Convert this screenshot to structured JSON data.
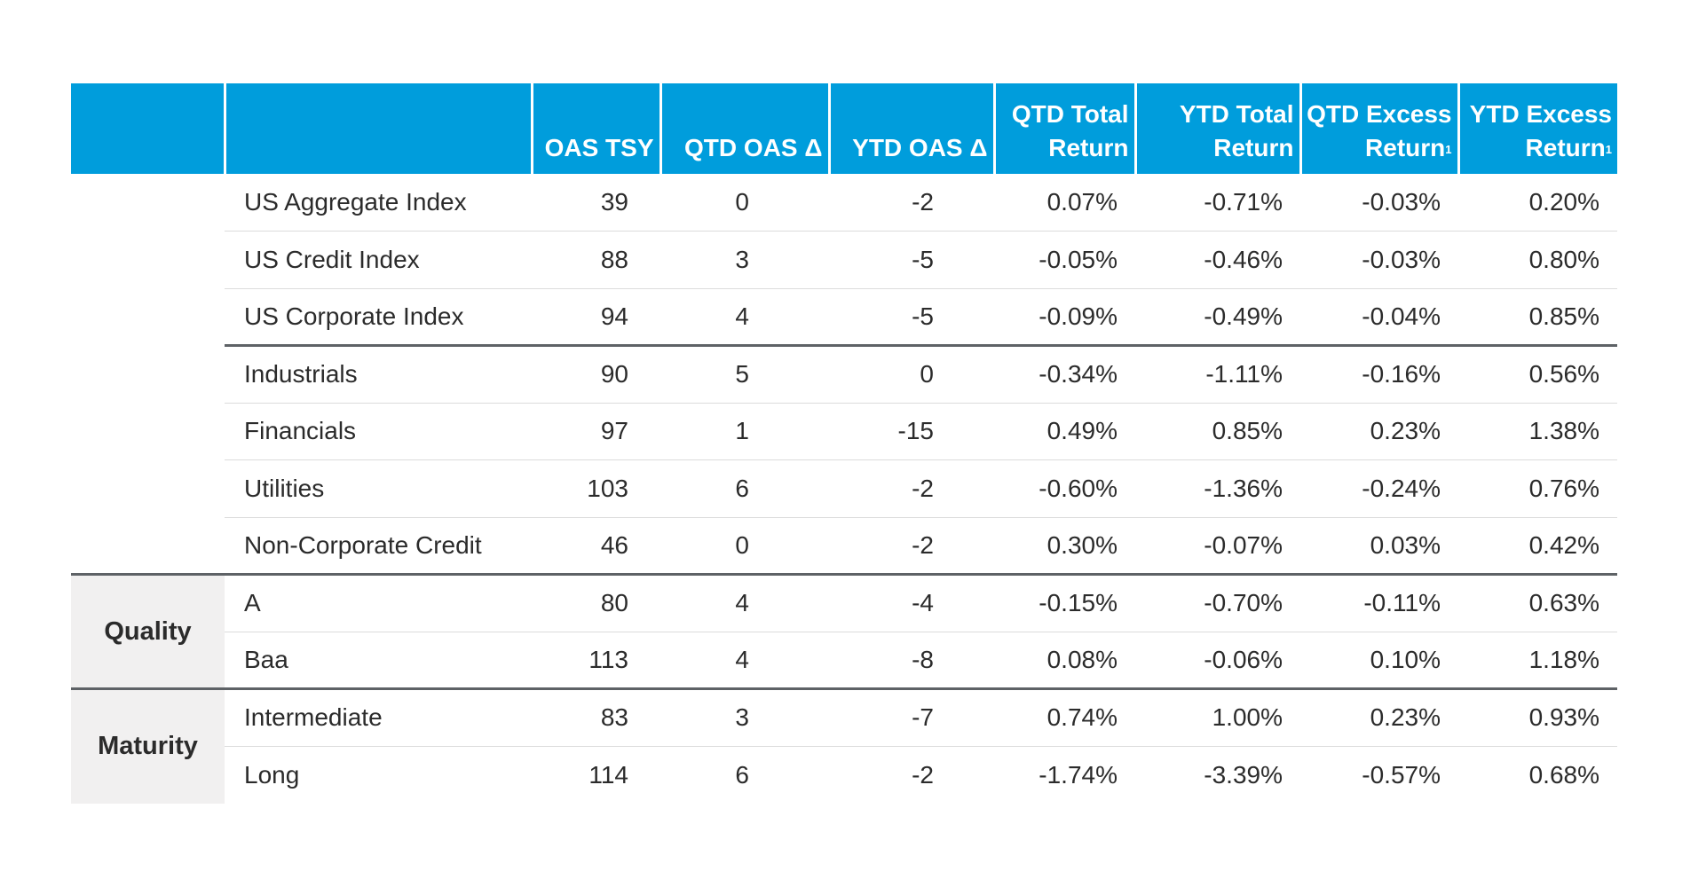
{
  "headers": {
    "col_oas": "OAS TSY",
    "col_qtd_oas": "QTD OAS Δ",
    "col_ytd_oas": "YTD OAS Δ",
    "col_qtd_total_1": "QTD Total",
    "col_qtd_total_2": "Return",
    "col_ytd_total_1": "YTD Total",
    "col_ytd_total_2": "Return",
    "col_qtd_excess_1": "QTD Excess",
    "col_qtd_excess_2": "Return",
    "col_ytd_excess_1": "YTD Excess",
    "col_ytd_excess_2": "Return",
    "footnote_mark": "1"
  },
  "categories": {
    "quality": "Quality",
    "maturity": "Maturity"
  },
  "rows": [
    {
      "name": "US Aggregate Index",
      "oas": "39",
      "qtd_oas": "0",
      "ytd_oas": "-2",
      "qtd_total": "0.07%",
      "ytd_total": "-0.71%",
      "qtd_excess": "-0.03%",
      "ytd_excess": "0.20%"
    },
    {
      "name": "US Credit Index",
      "oas": "88",
      "qtd_oas": "3",
      "ytd_oas": "-5",
      "qtd_total": "-0.05%",
      "ytd_total": "-0.46%",
      "qtd_excess": "-0.03%",
      "ytd_excess": "0.80%"
    },
    {
      "name": "US Corporate Index",
      "oas": "94",
      "qtd_oas": "4",
      "ytd_oas": "-5",
      "qtd_total": "-0.09%",
      "ytd_total": "-0.49%",
      "qtd_excess": "-0.04%",
      "ytd_excess": "0.85%"
    },
    {
      "name": "Industrials",
      "oas": "90",
      "qtd_oas": "5",
      "ytd_oas": "0",
      "qtd_total": "-0.34%",
      "ytd_total": "-1.11%",
      "qtd_excess": "-0.16%",
      "ytd_excess": "0.56%"
    },
    {
      "name": "Financials",
      "oas": "97",
      "qtd_oas": "1",
      "ytd_oas": "-15",
      "qtd_total": "0.49%",
      "ytd_total": "0.85%",
      "qtd_excess": "0.23%",
      "ytd_excess": "1.38%"
    },
    {
      "name": "Utilities",
      "oas": "103",
      "qtd_oas": "6",
      "ytd_oas": "-2",
      "qtd_total": "-0.60%",
      "ytd_total": "-1.36%",
      "qtd_excess": "-0.24%",
      "ytd_excess": "0.76%"
    },
    {
      "name": "Non-Corporate Credit",
      "oas": "46",
      "qtd_oas": "0",
      "ytd_oas": "-2",
      "qtd_total": "0.30%",
      "ytd_total": "-0.07%",
      "qtd_excess": "0.03%",
      "ytd_excess": "0.42%"
    },
    {
      "name": "A",
      "oas": "80",
      "qtd_oas": "4",
      "ytd_oas": "-4",
      "qtd_total": "-0.15%",
      "ytd_total": "-0.70%",
      "qtd_excess": "-0.11%",
      "ytd_excess": "0.63%"
    },
    {
      "name": "Baa",
      "oas": "113",
      "qtd_oas": "4",
      "ytd_oas": "-8",
      "qtd_total": "0.08%",
      "ytd_total": "-0.06%",
      "qtd_excess": "0.10%",
      "ytd_excess": "1.18%"
    },
    {
      "name": "Intermediate",
      "oas": "83",
      "qtd_oas": "3",
      "ytd_oas": "-7",
      "qtd_total": "0.74%",
      "ytd_total": "1.00%",
      "qtd_excess": "0.23%",
      "ytd_excess": "0.93%"
    },
    {
      "name": "Long",
      "oas": "114",
      "qtd_oas": "6",
      "ytd_oas": "-2",
      "qtd_total": "-1.74%",
      "ytd_total": "-3.39%",
      "qtd_excess": "-0.57%",
      "ytd_excess": "0.68%"
    }
  ],
  "colors": {
    "header_bg": "#009ddc",
    "header_text": "#ffffff",
    "category_bg": "#f1f0f0",
    "rule_dark": "#5e6266",
    "rule_light": "#dcdcdc"
  }
}
